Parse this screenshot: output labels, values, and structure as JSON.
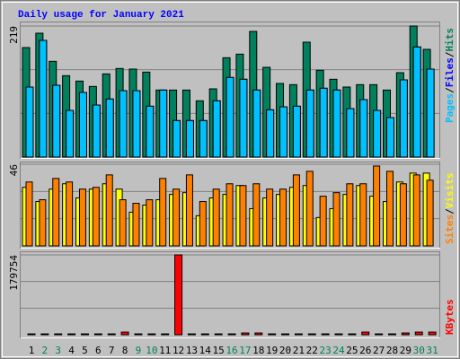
{
  "title": "Daily usage for January 2021",
  "legend_separator": "/",
  "chart_data": [
    {
      "type": "bar",
      "ylim": [
        0,
        219
      ],
      "yticks": [
        219
      ],
      "grid": true,
      "series": [
        {
          "name": "Hits",
          "color": "#00805c",
          "values": [
            183,
            207,
            160,
            136,
            127,
            118,
            139,
            148,
            147,
            142,
            112,
            112,
            112,
            94,
            114,
            166,
            172,
            210,
            150,
            123,
            121,
            192,
            145,
            130,
            117,
            121,
            121,
            112,
            141,
            219,
            180
          ]
        },
        {
          "name": "Files",
          "color": "#0000ff",
          "values": [
            117,
            195,
            120,
            78,
            108,
            87,
            97,
            111,
            111,
            85,
            112,
            61,
            61,
            61,
            94,
            133,
            130,
            112,
            79,
            84,
            85,
            112,
            115,
            112,
            81,
            96,
            78,
            66,
            129,
            184,
            147
          ]
        },
        {
          "name": "Pages",
          "color": "#00c0ff",
          "values": [
            117,
            195,
            120,
            78,
            108,
            87,
            97,
            111,
            111,
            85,
            112,
            61,
            61,
            61,
            94,
            133,
            130,
            112,
            79,
            84,
            85,
            112,
            115,
            112,
            81,
            96,
            78,
            66,
            129,
            184,
            147
          ]
        }
      ]
    },
    {
      "type": "bar",
      "ylim": [
        0,
        46
      ],
      "yticks": [
        46
      ],
      "grid": true,
      "series": [
        {
          "name": "Visits",
          "color": "#ffff00",
          "values": [
            33,
            25,
            32,
            35,
            27,
            32,
            35,
            32,
            19,
            23,
            26,
            29,
            30,
            17,
            27,
            29,
            34,
            21,
            27,
            29,
            33,
            34,
            16,
            21,
            29,
            34,
            28,
            25,
            36,
            41,
            41
          ]
        },
        {
          "name": "Sites",
          "color": "#ff8000",
          "values": [
            36,
            26,
            38,
            36,
            32,
            33,
            40,
            26,
            24,
            26,
            38,
            32,
            40,
            25,
            32,
            35,
            34,
            35,
            32,
            32,
            40,
            42,
            28,
            30,
            35,
            35,
            45,
            42,
            35,
            40,
            37
          ]
        }
      ]
    },
    {
      "type": "bar",
      "ylim": [
        0,
        179754
      ],
      "yticks": [
        179754
      ],
      "grid": true,
      "categories": [
        "1",
        "2",
        "3",
        "4",
        "5",
        "6",
        "7",
        "8",
        "9",
        "10",
        "11",
        "12",
        "13",
        "14",
        "15",
        "16",
        "17",
        "18",
        "19",
        "20",
        "21",
        "22",
        "23",
        "24",
        "25",
        "26",
        "27",
        "28",
        "29",
        "30",
        "31"
      ],
      "highlight_indices": [
        1,
        2,
        8,
        9,
        15,
        16,
        22,
        23,
        29,
        30
      ],
      "highlight_color": "#00805c",
      "series": [
        {
          "name": "KBytes",
          "color": "#ff0000",
          "values": [
            2000,
            2000,
            2000,
            2000,
            2000,
            2000,
            2000,
            6000,
            2000,
            2000,
            2000,
            179754,
            2000,
            2000,
            2000,
            2000,
            4000,
            4000,
            2000,
            2000,
            2000,
            2000,
            2000,
            2000,
            2000,
            6000,
            2000,
            2000,
            4000,
            6000,
            6000
          ]
        }
      ]
    }
  ]
}
